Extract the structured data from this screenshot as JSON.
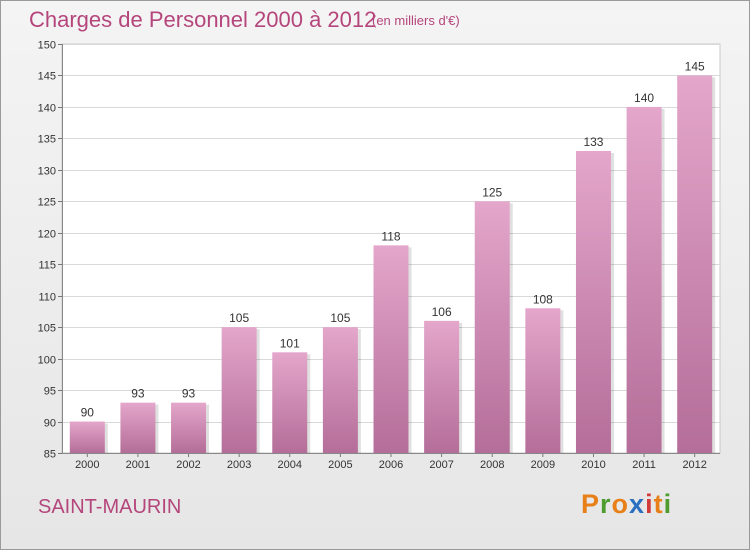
{
  "header": {
    "title": "Charges de Personnel 2000 à 2012",
    "subtitle": "(en milliers d'€)"
  },
  "footer": {
    "commune": "SAINT-MAURIN",
    "logo": [
      "P",
      "r",
      "o",
      "x",
      "i",
      "t",
      "i"
    ]
  },
  "colors": {
    "bar_top": "#e4a6cb",
    "bar_bottom": "#b46e99",
    "title": "#b5467c",
    "logo_letters": [
      "#e8801a",
      "#4d9c2d",
      "#e8801a",
      "#2a6fc0",
      "#d23a3a",
      "#e8801a",
      "#4d9c2d"
    ]
  },
  "chart_data": {
    "type": "bar",
    "title": "Charges de Personnel 2000 à 2012",
    "subtitle": "(en milliers d'€)",
    "categories": [
      "2000",
      "2001",
      "2002",
      "2003",
      "2004",
      "2005",
      "2006",
      "2007",
      "2008",
      "2009",
      "2010",
      "2011",
      "2012"
    ],
    "values": [
      90,
      93,
      93,
      105,
      101,
      105,
      118,
      106,
      125,
      108,
      133,
      140,
      145
    ],
    "ylim": [
      85,
      150
    ],
    "yticks": [
      85,
      90,
      95,
      100,
      105,
      110,
      115,
      120,
      125,
      130,
      135,
      140,
      145,
      150
    ],
    "grid": true,
    "legend": "none"
  }
}
